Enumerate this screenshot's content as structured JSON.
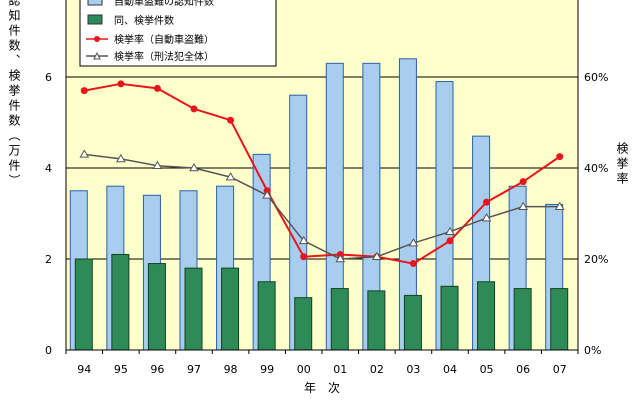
{
  "chart_data": {
    "type": "bar+line",
    "categories": [
      "94",
      "95",
      "96",
      "97",
      "98",
      "99",
      "00",
      "01",
      "02",
      "03",
      "04",
      "05",
      "06",
      "07"
    ],
    "left_axis": {
      "label": "認知件数、検挙件数（万件）",
      "ylim": [
        0,
        8
      ],
      "ticks": [
        "0",
        "2",
        "4",
        "6"
      ]
    },
    "right_axis": {
      "label": "検挙率",
      "ylim": [
        0,
        80
      ],
      "ticks": [
        "0%",
        "20%",
        "40%",
        "60%"
      ]
    },
    "xlabel": "年　次",
    "series": [
      {
        "name": "自動車盗難の認知件数",
        "type": "bar",
        "axis": "left",
        "color": "#a8cdef",
        "values": [
          3.5,
          3.6,
          3.4,
          3.5,
          3.6,
          4.3,
          5.6,
          6.3,
          6.3,
          6.4,
          5.9,
          4.7,
          3.6,
          3.2
        ]
      },
      {
        "name": "同、検挙件数",
        "type": "bar",
        "axis": "left",
        "color": "#2e8b57",
        "values": [
          2.0,
          2.1,
          1.9,
          1.8,
          1.8,
          1.5,
          1.15,
          1.35,
          1.3,
          1.2,
          1.4,
          1.5,
          1.35,
          1.35
        ]
      },
      {
        "name": "検挙率（自動車盗難）",
        "type": "line",
        "axis": "right",
        "color": "#e8161c",
        "marker": "circle",
        "values": [
          57,
          58.5,
          57.5,
          53,
          50.5,
          35,
          20.5,
          21,
          20.5,
          19,
          24,
          32.5,
          37,
          42.5
        ]
      },
      {
        "name": "検挙率（刑法犯全体）",
        "type": "line",
        "axis": "right",
        "color": "#555555",
        "marker": "triangle",
        "values": [
          43,
          42,
          40.5,
          40,
          38,
          34,
          24,
          20,
          20.5,
          23.5,
          26,
          29,
          31.5,
          31.5
        ]
      }
    ]
  }
}
